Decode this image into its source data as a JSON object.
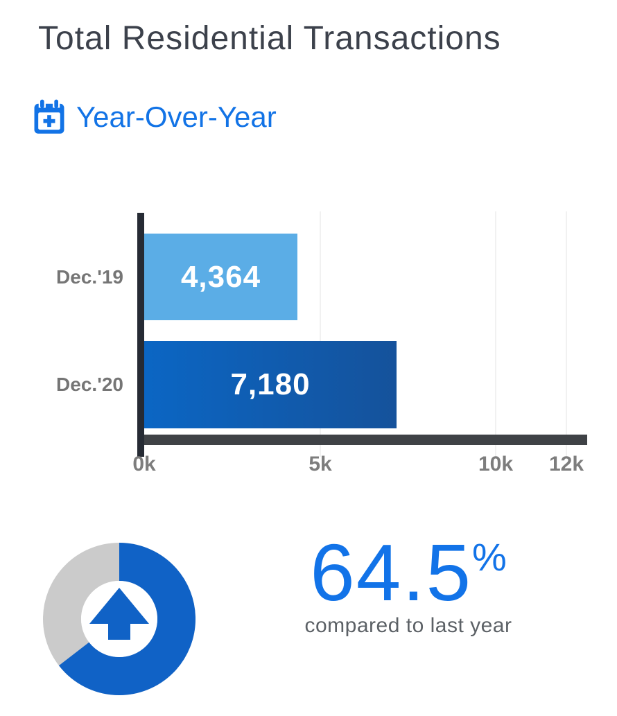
{
  "header": {
    "title": "Total Residential Transactions",
    "period_selector": {
      "label": "Year-Over-Year",
      "icon": "calendar-plus-icon"
    }
  },
  "chart_data": {
    "type": "bar",
    "orientation": "horizontal",
    "title": "Total Residential Transactions",
    "categories": [
      "Dec.'19",
      "Dec.'20"
    ],
    "series": [
      {
        "name": "Total Residential Transactions",
        "values": [
          4364,
          7180
        ]
      }
    ],
    "value_labels": [
      "4,364",
      "7,180"
    ],
    "bar_colors": [
      [
        "#5BADE6"
      ],
      [
        "#0B66C4",
        "#15529B"
      ]
    ],
    "xlabel": "",
    "ylabel": "",
    "xlim": [
      0,
      12600
    ],
    "ticks": [
      {
        "value": 0,
        "label": "0k"
      },
      {
        "value": 5000,
        "label": "5k"
      },
      {
        "value": 10000,
        "label": "10k"
      },
      {
        "value": 12000,
        "label": "12k"
      }
    ],
    "gridline_values": [
      5000,
      10000,
      12000
    ],
    "grid": "vertical light gray",
    "legend": "none"
  },
  "kpi": {
    "value": "64.5",
    "unit": "%",
    "caption": "compared to last year",
    "donut": {
      "percent": 64.5,
      "fill_color": "#1062C6",
      "track_color": "#CBCBCB",
      "center_icon": "arrow-up-icon"
    }
  },
  "colors": {
    "title_text": "#3C414B",
    "accent_blue": "#1273E6",
    "axis_dark": "#262B34",
    "baseline_dark": "#3F4246",
    "label_gray": "#7A7A7A",
    "gridline": "#F1F1F1",
    "bar_value_text": "#FFFFFF"
  }
}
